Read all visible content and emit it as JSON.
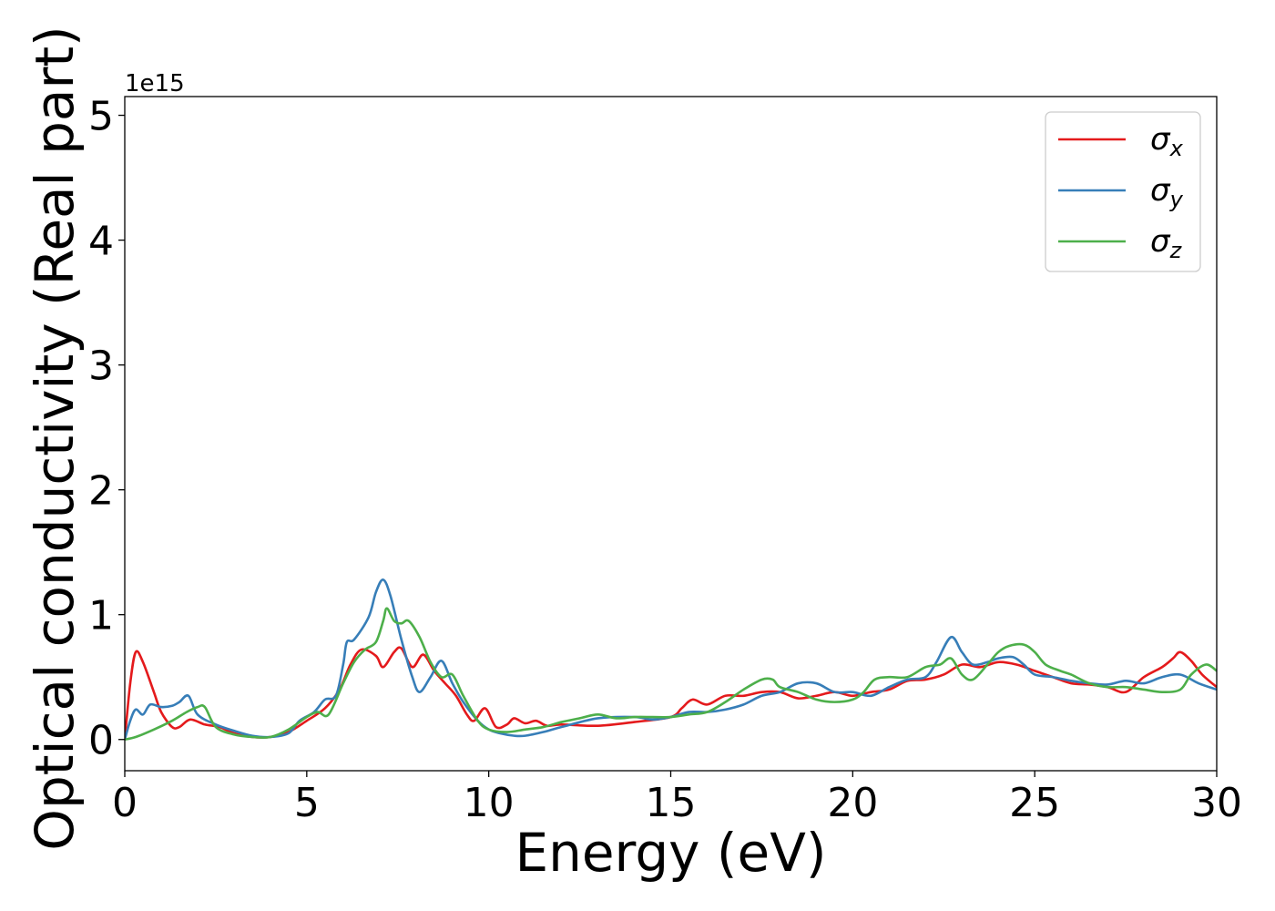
{
  "chart_data": {
    "type": "line",
    "xlabel": "Energy (eV)",
    "ylabel": "Optical conductivity (Real part)",
    "offset_text": "1e15",
    "y_scale_multiplier": 1000000000000000.0,
    "xlim": [
      0,
      30
    ],
    "ylim": [
      -0.25,
      5.15
    ],
    "x_ticks": [
      0,
      5,
      10,
      15,
      20,
      25,
      30
    ],
    "x_tick_labels": [
      "0",
      "5",
      "10",
      "15",
      "20",
      "25",
      "30"
    ],
    "y_ticks": [
      0,
      1,
      2,
      3,
      4,
      5
    ],
    "y_tick_labels": [
      "0",
      "1",
      "2",
      "3",
      "4",
      "5"
    ],
    "grid": false,
    "legend_position": "top-right",
    "series": [
      {
        "name": "σx",
        "name_base": "σ",
        "name_sub": "x",
        "color": "#e41a1c",
        "points": [
          [
            0,
            0
          ],
          [
            0.15,
            0.45
          ],
          [
            0.3,
            0.7
          ],
          [
            0.5,
            0.62
          ],
          [
            0.8,
            0.38
          ],
          [
            1.0,
            0.22
          ],
          [
            1.3,
            0.1
          ],
          [
            1.5,
            0.1
          ],
          [
            1.8,
            0.16
          ],
          [
            2.2,
            0.12
          ],
          [
            2.6,
            0.1
          ],
          [
            3.0,
            0.05
          ],
          [
            3.5,
            0.02
          ],
          [
            4.0,
            0.02
          ],
          [
            4.5,
            0.06
          ],
          [
            5.0,
            0.15
          ],
          [
            5.5,
            0.25
          ],
          [
            5.9,
            0.4
          ],
          [
            6.2,
            0.6
          ],
          [
            6.5,
            0.72
          ],
          [
            6.9,
            0.67
          ],
          [
            7.1,
            0.58
          ],
          [
            7.4,
            0.7
          ],
          [
            7.6,
            0.73
          ],
          [
            7.9,
            0.58
          ],
          [
            8.2,
            0.68
          ],
          [
            8.5,
            0.55
          ],
          [
            8.8,
            0.45
          ],
          [
            9.1,
            0.35
          ],
          [
            9.4,
            0.2
          ],
          [
            9.6,
            0.15
          ],
          [
            9.9,
            0.25
          ],
          [
            10.2,
            0.1
          ],
          [
            10.5,
            0.12
          ],
          [
            10.7,
            0.17
          ],
          [
            11.0,
            0.13
          ],
          [
            11.3,
            0.15
          ],
          [
            11.6,
            0.11
          ],
          [
            12.0,
            0.12
          ],
          [
            13.0,
            0.11
          ],
          [
            14.0,
            0.14
          ],
          [
            15.0,
            0.18
          ],
          [
            15.3,
            0.25
          ],
          [
            15.6,
            0.32
          ],
          [
            16.0,
            0.28
          ],
          [
            16.5,
            0.35
          ],
          [
            17.0,
            0.35
          ],
          [
            17.5,
            0.38
          ],
          [
            18.0,
            0.38
          ],
          [
            18.5,
            0.33
          ],
          [
            19.0,
            0.35
          ],
          [
            19.5,
            0.38
          ],
          [
            20.0,
            0.35
          ],
          [
            20.5,
            0.38
          ],
          [
            21.0,
            0.4
          ],
          [
            21.5,
            0.47
          ],
          [
            22.0,
            0.48
          ],
          [
            22.5,
            0.52
          ],
          [
            23.0,
            0.6
          ],
          [
            23.5,
            0.58
          ],
          [
            24.0,
            0.62
          ],
          [
            24.5,
            0.6
          ],
          [
            25.0,
            0.55
          ],
          [
            25.5,
            0.5
          ],
          [
            26.0,
            0.45
          ],
          [
            26.5,
            0.44
          ],
          [
            27.0,
            0.42
          ],
          [
            27.5,
            0.38
          ],
          [
            28.0,
            0.5
          ],
          [
            28.5,
            0.58
          ],
          [
            28.8,
            0.65
          ],
          [
            29.0,
            0.7
          ],
          [
            29.3,
            0.63
          ],
          [
            29.6,
            0.52
          ],
          [
            30.0,
            0.42
          ]
        ]
      },
      {
        "name": "σy",
        "name_base": "σ",
        "name_sub": "y",
        "color": "#377eb8",
        "points": [
          [
            0,
            0
          ],
          [
            0.15,
            0.15
          ],
          [
            0.3,
            0.24
          ],
          [
            0.5,
            0.2
          ],
          [
            0.7,
            0.28
          ],
          [
            1.0,
            0.26
          ],
          [
            1.3,
            0.27
          ],
          [
            1.5,
            0.3
          ],
          [
            1.75,
            0.35
          ],
          [
            2.0,
            0.2
          ],
          [
            2.5,
            0.12
          ],
          [
            3.0,
            0.07
          ],
          [
            3.5,
            0.03
          ],
          [
            4.0,
            0.02
          ],
          [
            4.5,
            0.05
          ],
          [
            4.8,
            0.15
          ],
          [
            5.2,
            0.22
          ],
          [
            5.5,
            0.32
          ],
          [
            5.8,
            0.35
          ],
          [
            6.0,
            0.6
          ],
          [
            6.1,
            0.78
          ],
          [
            6.3,
            0.8
          ],
          [
            6.7,
            0.98
          ],
          [
            6.9,
            1.18
          ],
          [
            7.1,
            1.28
          ],
          [
            7.3,
            1.15
          ],
          [
            7.6,
            0.8
          ],
          [
            7.9,
            0.5
          ],
          [
            8.1,
            0.38
          ],
          [
            8.4,
            0.5
          ],
          [
            8.7,
            0.63
          ],
          [
            9.0,
            0.45
          ],
          [
            9.3,
            0.3
          ],
          [
            9.7,
            0.15
          ],
          [
            10.0,
            0.08
          ],
          [
            10.3,
            0.05
          ],
          [
            10.7,
            0.03
          ],
          [
            11.0,
            0.03
          ],
          [
            11.5,
            0.06
          ],
          [
            12.0,
            0.1
          ],
          [
            13.0,
            0.17
          ],
          [
            14.0,
            0.18
          ],
          [
            14.5,
            0.16
          ],
          [
            15.0,
            0.18
          ],
          [
            15.5,
            0.22
          ],
          [
            16.0,
            0.22
          ],
          [
            16.5,
            0.24
          ],
          [
            17.0,
            0.28
          ],
          [
            17.5,
            0.35
          ],
          [
            18.0,
            0.38
          ],
          [
            18.5,
            0.45
          ],
          [
            19.0,
            0.45
          ],
          [
            19.5,
            0.38
          ],
          [
            20.0,
            0.38
          ],
          [
            20.5,
            0.35
          ],
          [
            21.0,
            0.42
          ],
          [
            21.5,
            0.48
          ],
          [
            22.0,
            0.5
          ],
          [
            22.3,
            0.62
          ],
          [
            22.7,
            0.82
          ],
          [
            23.0,
            0.7
          ],
          [
            23.3,
            0.6
          ],
          [
            23.7,
            0.62
          ],
          [
            24.0,
            0.65
          ],
          [
            24.4,
            0.66
          ],
          [
            24.7,
            0.6
          ],
          [
            25.0,
            0.52
          ],
          [
            25.5,
            0.5
          ],
          [
            26.0,
            0.47
          ],
          [
            26.5,
            0.45
          ],
          [
            27.0,
            0.44
          ],
          [
            27.5,
            0.47
          ],
          [
            28.0,
            0.45
          ],
          [
            28.5,
            0.5
          ],
          [
            29.0,
            0.52
          ],
          [
            29.5,
            0.45
          ],
          [
            30.0,
            0.4
          ]
        ]
      },
      {
        "name": "σz",
        "name_base": "σ",
        "name_sub": "z",
        "color": "#4daf4a",
        "points": [
          [
            0,
            0
          ],
          [
            0.3,
            0.02
          ],
          [
            0.8,
            0.08
          ],
          [
            1.3,
            0.15
          ],
          [
            1.7,
            0.22
          ],
          [
            2.0,
            0.26
          ],
          [
            2.2,
            0.26
          ],
          [
            2.5,
            0.1
          ],
          [
            3.0,
            0.04
          ],
          [
            3.5,
            0.02
          ],
          [
            4.0,
            0.02
          ],
          [
            4.5,
            0.08
          ],
          [
            5.0,
            0.18
          ],
          [
            5.3,
            0.22
          ],
          [
            5.6,
            0.2
          ],
          [
            6.0,
            0.45
          ],
          [
            6.3,
            0.62
          ],
          [
            6.6,
            0.72
          ],
          [
            6.9,
            0.78
          ],
          [
            7.1,
            0.95
          ],
          [
            7.2,
            1.05
          ],
          [
            7.4,
            0.95
          ],
          [
            7.6,
            0.93
          ],
          [
            7.8,
            0.95
          ],
          [
            8.1,
            0.82
          ],
          [
            8.4,
            0.62
          ],
          [
            8.7,
            0.5
          ],
          [
            9.0,
            0.52
          ],
          [
            9.3,
            0.35
          ],
          [
            9.7,
            0.15
          ],
          [
            10.0,
            0.08
          ],
          [
            10.5,
            0.06
          ],
          [
            11.0,
            0.08
          ],
          [
            11.5,
            0.1
          ],
          [
            12.0,
            0.14
          ],
          [
            12.5,
            0.17
          ],
          [
            13.0,
            0.2
          ],
          [
            13.5,
            0.17
          ],
          [
            14.0,
            0.18
          ],
          [
            14.5,
            0.18
          ],
          [
            15.0,
            0.18
          ],
          [
            15.5,
            0.2
          ],
          [
            16.0,
            0.22
          ],
          [
            16.5,
            0.3
          ],
          [
            17.0,
            0.4
          ],
          [
            17.5,
            0.48
          ],
          [
            17.8,
            0.48
          ],
          [
            18.0,
            0.42
          ],
          [
            18.5,
            0.38
          ],
          [
            19.0,
            0.32
          ],
          [
            19.5,
            0.3
          ],
          [
            20.0,
            0.32
          ],
          [
            20.3,
            0.38
          ],
          [
            20.6,
            0.48
          ],
          [
            21.0,
            0.5
          ],
          [
            21.5,
            0.5
          ],
          [
            22.0,
            0.58
          ],
          [
            22.4,
            0.6
          ],
          [
            22.7,
            0.65
          ],
          [
            23.0,
            0.52
          ],
          [
            23.3,
            0.48
          ],
          [
            23.7,
            0.6
          ],
          [
            24.0,
            0.7
          ],
          [
            24.3,
            0.75
          ],
          [
            24.7,
            0.76
          ],
          [
            25.0,
            0.7
          ],
          [
            25.3,
            0.6
          ],
          [
            25.7,
            0.55
          ],
          [
            26.0,
            0.52
          ],
          [
            26.5,
            0.45
          ],
          [
            27.0,
            0.42
          ],
          [
            27.5,
            0.42
          ],
          [
            28.0,
            0.4
          ],
          [
            28.5,
            0.38
          ],
          [
            29.0,
            0.4
          ],
          [
            29.3,
            0.52
          ],
          [
            29.7,
            0.6
          ],
          [
            30.0,
            0.55
          ]
        ]
      }
    ]
  }
}
